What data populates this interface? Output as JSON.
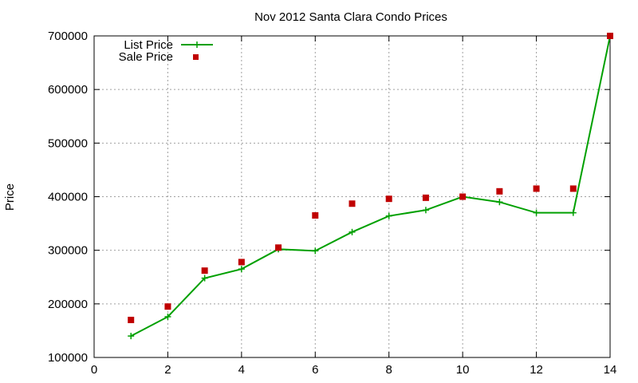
{
  "chart_data": {
    "type": "line",
    "title": "Nov 2012 Santa Clara Condo Prices",
    "xlabel": "",
    "ylabel": "Price",
    "xlim": [
      0,
      14
    ],
    "ylim": [
      100000,
      700000
    ],
    "xticks": [
      0,
      2,
      4,
      6,
      8,
      10,
      12,
      14
    ],
    "yticks": [
      100000,
      200000,
      300000,
      400000,
      500000,
      600000,
      700000
    ],
    "grid": true,
    "legend_position": "top-left",
    "series": [
      {
        "name": "List Price",
        "style": "line+plus-markers",
        "color": "#00a000",
        "x": [
          1,
          2,
          3,
          4,
          5,
          6,
          7,
          8,
          9,
          10,
          11,
          12,
          13,
          14
        ],
        "y": [
          140000,
          176000,
          248000,
          265000,
          302000,
          299000,
          334000,
          364000,
          375000,
          400000,
          390000,
          370000,
          370000,
          700000
        ]
      },
      {
        "name": "Sale Price",
        "style": "square-markers",
        "color": "#c00000",
        "x": [
          1,
          2,
          3,
          4,
          5,
          6,
          7,
          8,
          9,
          10,
          11,
          12,
          13,
          14
        ],
        "y": [
          170000,
          195000,
          262000,
          278000,
          305000,
          365000,
          387000,
          396000,
          398000,
          400000,
          410000,
          415000,
          415000,
          700000
        ]
      }
    ]
  }
}
